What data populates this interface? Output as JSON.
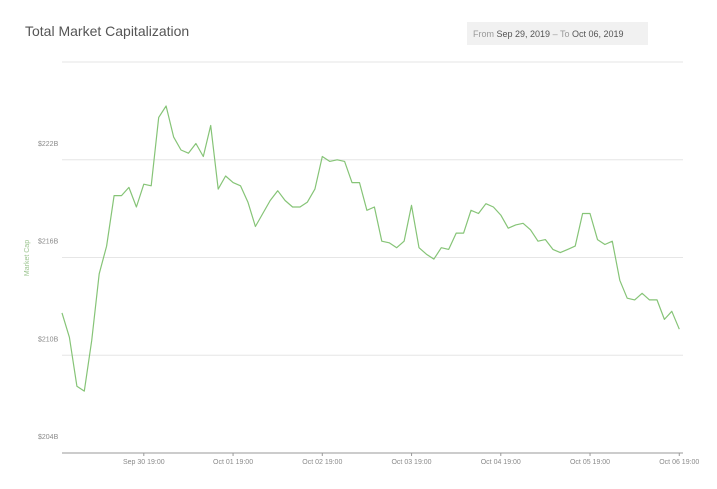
{
  "date_range": {
    "from_label": "From",
    "from": "Sep 29, 2019",
    "separator": "–",
    "to_label": "To",
    "to": "Oct 06, 2019"
  },
  "chart_data": {
    "type": "line",
    "title": "Total Market Capitalization",
    "y_label": "Market Cap",
    "x": [
      "Sep 29 21:00",
      "Sep 29 23:00",
      "Sep 30 01:00",
      "Sep 30 03:00",
      "Sep 30 05:00",
      "Sep 30 07:00",
      "Sep 30 09:00",
      "Sep 30 11:00",
      "Sep 30 13:00",
      "Sep 30 15:00",
      "Sep 30 17:00",
      "Sep 30 19:00",
      "Sep 30 21:00",
      "Sep 30 23:00",
      "Oct 01 01:00",
      "Oct 01 03:00",
      "Oct 01 05:00",
      "Oct 01 07:00",
      "Oct 01 09:00",
      "Oct 01 11:00",
      "Oct 01 13:00",
      "Oct 01 15:00",
      "Oct 01 17:00",
      "Oct 01 19:00",
      "Oct 01 21:00",
      "Oct 01 23:00",
      "Oct 02 01:00",
      "Oct 02 03:00",
      "Oct 02 05:00",
      "Oct 02 07:00",
      "Oct 02 09:00",
      "Oct 02 11:00",
      "Oct 02 13:00",
      "Oct 02 15:00",
      "Oct 02 17:00",
      "Oct 02 19:00",
      "Oct 02 21:00",
      "Oct 02 23:00",
      "Oct 03 01:00",
      "Oct 03 03:00",
      "Oct 03 05:00",
      "Oct 03 07:00",
      "Oct 03 09:00",
      "Oct 03 11:00",
      "Oct 03 13:00",
      "Oct 03 15:00",
      "Oct 03 17:00",
      "Oct 03 19:00",
      "Oct 03 21:00",
      "Oct 03 23:00",
      "Oct 04 01:00",
      "Oct 04 03:00",
      "Oct 04 05:00",
      "Oct 04 07:00",
      "Oct 04 09:00",
      "Oct 04 11:00",
      "Oct 04 13:00",
      "Oct 04 15:00",
      "Oct 04 17:00",
      "Oct 04 19:00",
      "Oct 04 21:00",
      "Oct 04 23:00",
      "Oct 05 01:00",
      "Oct 05 03:00",
      "Oct 05 05:00",
      "Oct 05 07:00",
      "Oct 05 09:00",
      "Oct 05 11:00",
      "Oct 05 13:00",
      "Oct 05 15:00",
      "Oct 05 17:00",
      "Oct 05 19:00",
      "Oct 05 21:00",
      "Oct 05 23:00",
      "Oct 06 01:00",
      "Oct 06 03:00",
      "Oct 06 05:00",
      "Oct 06 07:00",
      "Oct 06 09:00",
      "Oct 06 11:00",
      "Oct 06 13:00",
      "Oct 06 15:00",
      "Oct 06 17:00",
      "Oct 06 19:00"
    ],
    "series": [
      {
        "name": "Market Cap",
        "color": "#86c477",
        "values": [
          212.6,
          211.1,
          208.1,
          207.8,
          210.9,
          215.0,
          216.7,
          219.8,
          219.8,
          220.3,
          219.1,
          220.5,
          220.4,
          224.6,
          225.3,
          223.4,
          222.6,
          222.4,
          223.0,
          222.2,
          224.1,
          220.2,
          221.0,
          220.6,
          220.4,
          219.4,
          217.9,
          218.7,
          219.5,
          220.1,
          219.5,
          219.1,
          219.1,
          219.4,
          220.2,
          222.2,
          221.9,
          222.0,
          221.9,
          220.6,
          220.6,
          218.9,
          219.1,
          217.0,
          216.9,
          216.6,
          217.0,
          219.2,
          216.6,
          216.2,
          215.9,
          216.6,
          216.5,
          217.5,
          217.5,
          218.9,
          218.7,
          219.3,
          219.1,
          218.6,
          217.8,
          218.0,
          218.1,
          217.7,
          217.0,
          217.1,
          216.5,
          216.3,
          216.5,
          216.7,
          218.7,
          218.7,
          217.1,
          216.8,
          217.0,
          214.6,
          213.5,
          213.4,
          213.8,
          213.4,
          213.4,
          212.2,
          212.7,
          211.6
        ]
      }
    ],
    "xlim": [
      "Sep 29 21:00",
      "Oct 06 20:00"
    ],
    "xticks": [
      "Sep 30 19:00",
      "Oct 01 19:00",
      "Oct 02 19:00",
      "Oct 03 19:00",
      "Oct 04 19:00",
      "Oct 05 19:00",
      "Oct 06 19:00"
    ],
    "ylim": [
      204,
      228
    ],
    "yticks": [
      {
        "value": 204,
        "label": "$204B"
      },
      {
        "value": 210,
        "label": "$210B"
      },
      {
        "value": 216,
        "label": "$216B"
      },
      {
        "value": 222,
        "label": "$222B"
      }
    ],
    "grid": true
  }
}
